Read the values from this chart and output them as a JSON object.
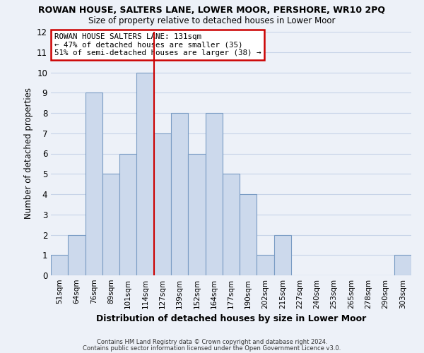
{
  "title_line1": "ROWAN HOUSE, SALTERS LANE, LOWER MOOR, PERSHORE, WR10 2PQ",
  "title_line2": "Size of property relative to detached houses in Lower Moor",
  "xlabel": "Distribution of detached houses by size in Lower Moor",
  "ylabel": "Number of detached properties",
  "bar_labels": [
    "51sqm",
    "64sqm",
    "76sqm",
    "89sqm",
    "101sqm",
    "114sqm",
    "127sqm",
    "139sqm",
    "152sqm",
    "164sqm",
    "177sqm",
    "190sqm",
    "202sqm",
    "215sqm",
    "227sqm",
    "240sqm",
    "253sqm",
    "265sqm",
    "278sqm",
    "290sqm",
    "303sqm"
  ],
  "bar_values": [
    1,
    2,
    9,
    5,
    6,
    10,
    7,
    8,
    6,
    8,
    5,
    4,
    1,
    2,
    0,
    0,
    0,
    0,
    0,
    0,
    1
  ],
  "bar_color": "#ccd9ec",
  "bar_edge_color": "#7a9cc4",
  "vline_x_index": 6,
  "vline_color": "#cc0000",
  "ylim": [
    0,
    12
  ],
  "yticks": [
    0,
    1,
    2,
    3,
    4,
    5,
    6,
    7,
    8,
    9,
    10,
    11,
    12
  ],
  "annotation_title": "ROWAN HOUSE SALTERS LANE: 131sqm",
  "annotation_line2": "← 47% of detached houses are smaller (35)",
  "annotation_line3": "51% of semi-detached houses are larger (38) →",
  "annotation_box_color": "#ffffff",
  "annotation_box_edge": "#cc0000",
  "grid_color": "#c8d4e8",
  "background_color": "#edf1f8",
  "footer_line1": "Contains HM Land Registry data © Crown copyright and database right 2024.",
  "footer_line2": "Contains public sector information licensed under the Open Government Licence v3.0."
}
